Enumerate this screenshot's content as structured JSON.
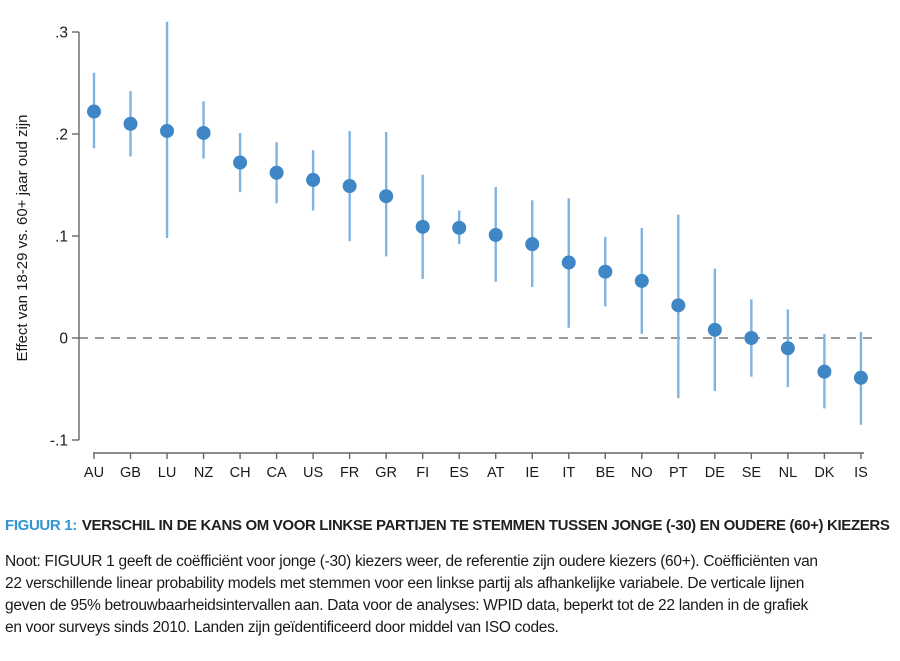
{
  "figure": {
    "label_prefix": "FIGUUR 1:",
    "title": "VERSCHIL IN DE KANS OM VOOR LINKSE PARTIJEN TE STEMMEN TUSSEN JONGE (-30) EN OUDERE (60+) KIEZERS"
  },
  "note": {
    "lines": [
      "Noot: FIGUUR 1 geeft de coëfficiënt voor jonge (-30) kiezers weer, de referentie zijn oudere kiezers (60+). Coëfficiënten van",
      "22 verschillende linear probability models met stemmen voor een linkse partij als afhankelijke variabele. De verticale lijnen",
      "geven de 95% betrouwbaarheidsintervallen aan. Data voor de analyses: WPID data, beperkt tot de 22 landen in de grafiek",
      "en voor surveys sinds 2010. Landen zijn geïdentificeerd door middel van ISO codes."
    ]
  },
  "chart_data": {
    "type": "scatter",
    "subtype": "coefficient-plot-with-95ci",
    "ylabel": "Effect van 18-29 vs. 60+ jaar oud zijn",
    "xlabel": "",
    "ylim": [
      -0.1,
      0.31
    ],
    "grid": false,
    "zero_reference_line": true,
    "categories": [
      "AU",
      "GB",
      "LU",
      "NZ",
      "CH",
      "CA",
      "US",
      "FR",
      "GR",
      "FI",
      "ES",
      "AT",
      "IE",
      "IT",
      "BE",
      "NO",
      "PT",
      "DE",
      "SE",
      "NL",
      "DK",
      "IS"
    ],
    "values": [
      0.222,
      0.21,
      0.203,
      0.201,
      0.172,
      0.162,
      0.155,
      0.149,
      0.139,
      0.109,
      0.108,
      0.101,
      0.092,
      0.074,
      0.065,
      0.056,
      0.032,
      0.008,
      0.0,
      -0.01,
      -0.033,
      -0.039
    ],
    "ci_low": [
      0.186,
      0.178,
      0.098,
      0.176,
      0.143,
      0.132,
      0.125,
      0.095,
      0.08,
      0.058,
      0.092,
      0.055,
      0.05,
      0.01,
      0.031,
      0.004,
      -0.059,
      -0.052,
      -0.038,
      -0.048,
      -0.069,
      -0.085
    ],
    "ci_high": [
      0.26,
      0.242,
      0.31,
      0.232,
      0.201,
      0.192,
      0.184,
      0.203,
      0.202,
      0.16,
      0.125,
      0.148,
      0.135,
      0.137,
      0.099,
      0.108,
      0.121,
      0.068,
      0.038,
      0.028,
      0.004,
      0.006
    ],
    "yticks": [
      0.3,
      0.2,
      0.1,
      0,
      -0.1
    ],
    "ytick_labels": [
      ".3",
      ".2",
      ".1",
      "0",
      "-.1"
    ],
    "colors": {
      "marker": "#3e86c6",
      "ci_line": "#7fb3e1",
      "axis": "#666666",
      "zero_line": "#777777",
      "tick_text": "#1a1a1a",
      "caption_accent": "#3095d2",
      "caption_text": "#231f20"
    }
  }
}
